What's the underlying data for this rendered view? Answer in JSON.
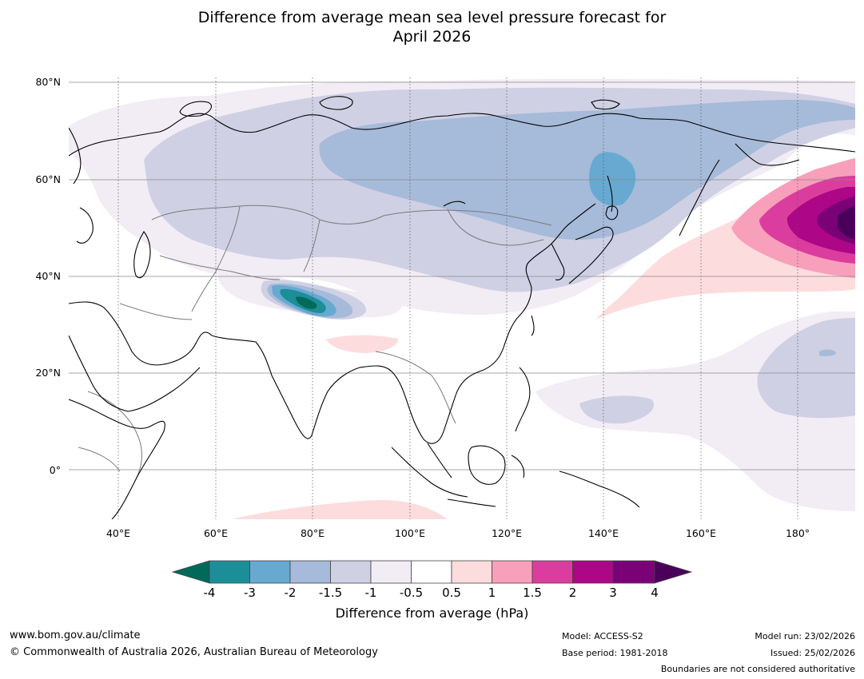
{
  "title_line1": "Difference from average mean sea level pressure forecast for",
  "title_line2": "April 2026",
  "map": {
    "lat_labels": [
      "80°N",
      "60°N",
      "40°N",
      "20°N",
      "0°"
    ],
    "lon_labels": [
      "40°E",
      "60°E",
      "80°E",
      "100°E",
      "120°E",
      "140°E",
      "160°E",
      "180°"
    ],
    "lon_range": [
      30,
      192
    ],
    "lat_range": [
      -10,
      80
    ]
  },
  "colorbar": {
    "title": "Difference from average (hPa)",
    "ticks": [
      "-4",
      "-3",
      "-2",
      "-1.5",
      "-1",
      "-0.5",
      "0.5",
      "1",
      "1.5",
      "2",
      "3",
      "4"
    ],
    "colors": {
      "lt_m4": "#006a5a",
      "m4_m3": "#1b8e97",
      "m3_m2": "#67a9d1",
      "m2_m15": "#a6bad9",
      "m15_m1": "#cfd0e4",
      "m1_m05": "#f2ecf5",
      "m05_05": "#ffffff",
      "p05_1": "#fddcde",
      "p1_15": "#f89fbb",
      "p15_2": "#da3d9d",
      "p2_3": "#ad0686",
      "p3_4": "#7b0177",
      "gt_4": "#4a005a"
    }
  },
  "footer": {
    "url": "www.bom.gov.au/climate",
    "copyright": "© Commonwealth of Australia 2026, Australian Bureau of Meteorology",
    "model": "Model: ACCESS-S2",
    "base_period": "Base period: 1981-2018",
    "model_run": "Model run: 23/02/2026",
    "issued": "Issued: 25/02/2026",
    "disclaimer": "Boundaries are not considered authoritative"
  }
}
